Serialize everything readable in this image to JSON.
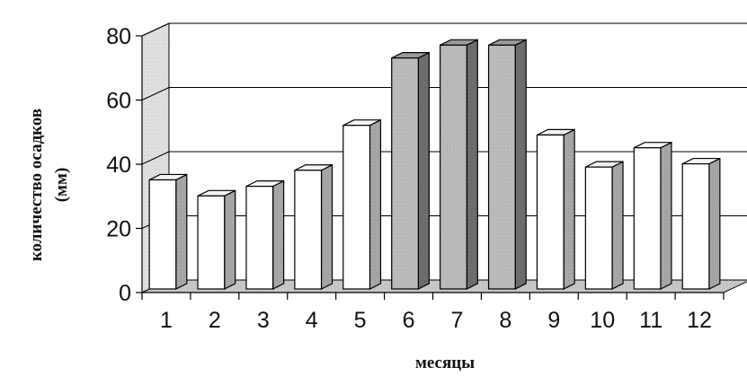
{
  "chart_data": {
    "type": "bar",
    "title": "",
    "xlabel": "месяцы",
    "ylabel": [
      "количество осадков",
      "(мм)"
    ],
    "categories": [
      "1",
      "2",
      "3",
      "4",
      "5",
      "6",
      "7",
      "8",
      "9",
      "10",
      "11",
      "12"
    ],
    "values": [
      34,
      29,
      32,
      37,
      51,
      72,
      76,
      76,
      48,
      38,
      44,
      39
    ],
    "highlighted": [
      false,
      false,
      false,
      false,
      false,
      true,
      true,
      true,
      false,
      false,
      false,
      false
    ],
    "ylim": [
      0,
      80
    ],
    "yticks": [
      "0",
      "20",
      "40",
      "60",
      "80"
    ],
    "grid": true,
    "style": "3d",
    "colors": {
      "bar_front": "#ffffff",
      "bar_top": "#f4f4f4",
      "bar_side": "#a8a8a8",
      "highlight_front": "#bdbdbd",
      "highlight_top": "#9a9a9a",
      "highlight_side": "#6e6e6e",
      "back_wall": "#ffffff",
      "side_wall": "#e2e2e2",
      "floor": "#c9c9c9",
      "grid": "#000000"
    }
  }
}
